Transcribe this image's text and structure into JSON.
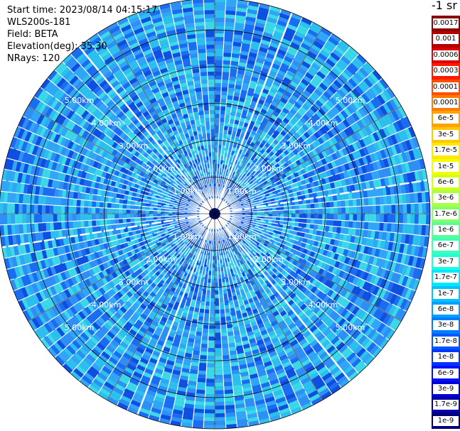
{
  "info": {
    "start_time": "Start time: 2023/08/14 04:15:17",
    "instrument": "WLS200s-181",
    "field": "Field: BETA",
    "elevation": "Elevation(deg): 35.30",
    "nrays": "NRays: 120"
  },
  "colorbar": {
    "unit": "-1 sr",
    "levels": [
      {
        "label": "0.0017",
        "color": "#8b0000"
      },
      {
        "label": "0.001",
        "color": "#b50000"
      },
      {
        "label": "0.0006",
        "color": "#dd0000"
      },
      {
        "label": "0.0003",
        "color": "#ff1a00"
      },
      {
        "label": "0.00017",
        "color": "#ff4d00"
      },
      {
        "label": "0.0001",
        "color": "#ff7a00"
      },
      {
        "label": "6e-5",
        "color": "#ffa200"
      },
      {
        "label": "3e-5",
        "color": "#ffc800"
      },
      {
        "label": "1.7e-5",
        "color": "#ffe800"
      },
      {
        "label": "1e-5",
        "color": "#f2ff00"
      },
      {
        "label": "6e-6",
        "color": "#d2ff1a"
      },
      {
        "label": "3e-6",
        "color": "#aaff40"
      },
      {
        "label": "1.7e-6",
        "color": "#82ff6a"
      },
      {
        "label": "1e-6",
        "color": "#5aff94"
      },
      {
        "label": "6e-7",
        "color": "#3dffb8"
      },
      {
        "label": "3e-7",
        "color": "#1affdc"
      },
      {
        "label": "1.7e-7",
        "color": "#00e8ff"
      },
      {
        "label": "1e-7",
        "color": "#00c4ff"
      },
      {
        "label": "6e-8",
        "color": "#00a0ff"
      },
      {
        "label": "3e-8",
        "color": "#007cff"
      },
      {
        "label": "1.7e-8",
        "color": "#0058ff"
      },
      {
        "label": "1e-8",
        "color": "#0034ff"
      },
      {
        "label": "6e-9",
        "color": "#0010ff"
      },
      {
        "label": "3e-9",
        "color": "#0000d8"
      },
      {
        "label": "1.7e-9",
        "color": "#0000a6"
      },
      {
        "label": "1e-9",
        "color": "#000078"
      }
    ]
  },
  "chart_data": {
    "type": "heatmap",
    "projection": "polar",
    "nrays": 120,
    "range_rings_km": [
      1,
      2,
      3,
      4,
      5
    ],
    "ring_labels": [
      "1.00km",
      "2.00km",
      "3.00km",
      "4.00km",
      "5.00km"
    ],
    "max_range_km": 5.85,
    "field": "BETA",
    "dominant_levels": [
      "1.7e-8",
      "3e-8",
      "6e-8",
      "1e-7",
      "1.7e-7"
    ],
    "colors": {
      "bg": "#1a6cf0",
      "tones": [
        "#0f4fe0",
        "#1a6cf0",
        "#2f8ff5",
        "#31a6f7",
        "#2cc0ee",
        "#3cd8e8"
      ],
      "ring_line": "#000000",
      "gap_line": "#ffffff"
    }
  }
}
